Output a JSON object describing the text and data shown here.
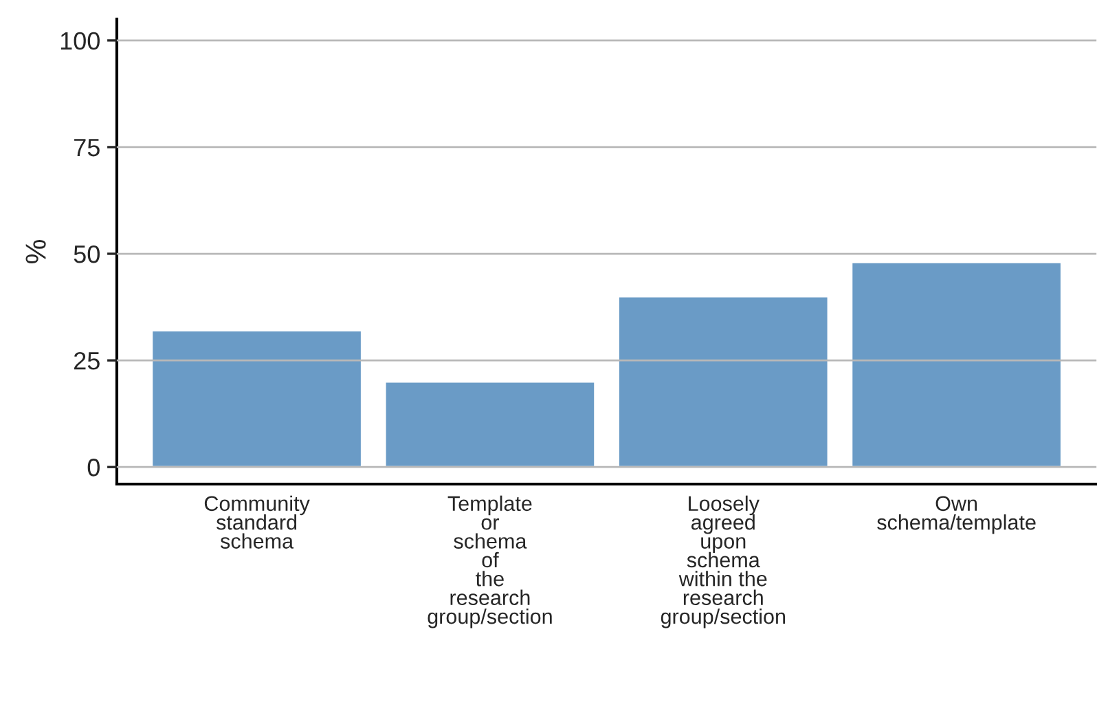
{
  "chart_data": {
    "type": "bar",
    "ylabel": "%",
    "categories": [
      "Community\nstandard\nschema",
      "Template\nor\nschema\nof\nthe\nresearch\ngroup/section",
      "Loosely\nagreed\nupon\nschema\nwithin the\nresearch\ngroup/section",
      "Own\nschema/template"
    ],
    "values": [
      32,
      20,
      40,
      48
    ],
    "color": "#6a9bc6",
    "ylim": [
      -4,
      105
    ],
    "yticks": [
      0,
      25,
      50,
      75,
      100
    ],
    "grid": "y",
    "legend": false
  }
}
